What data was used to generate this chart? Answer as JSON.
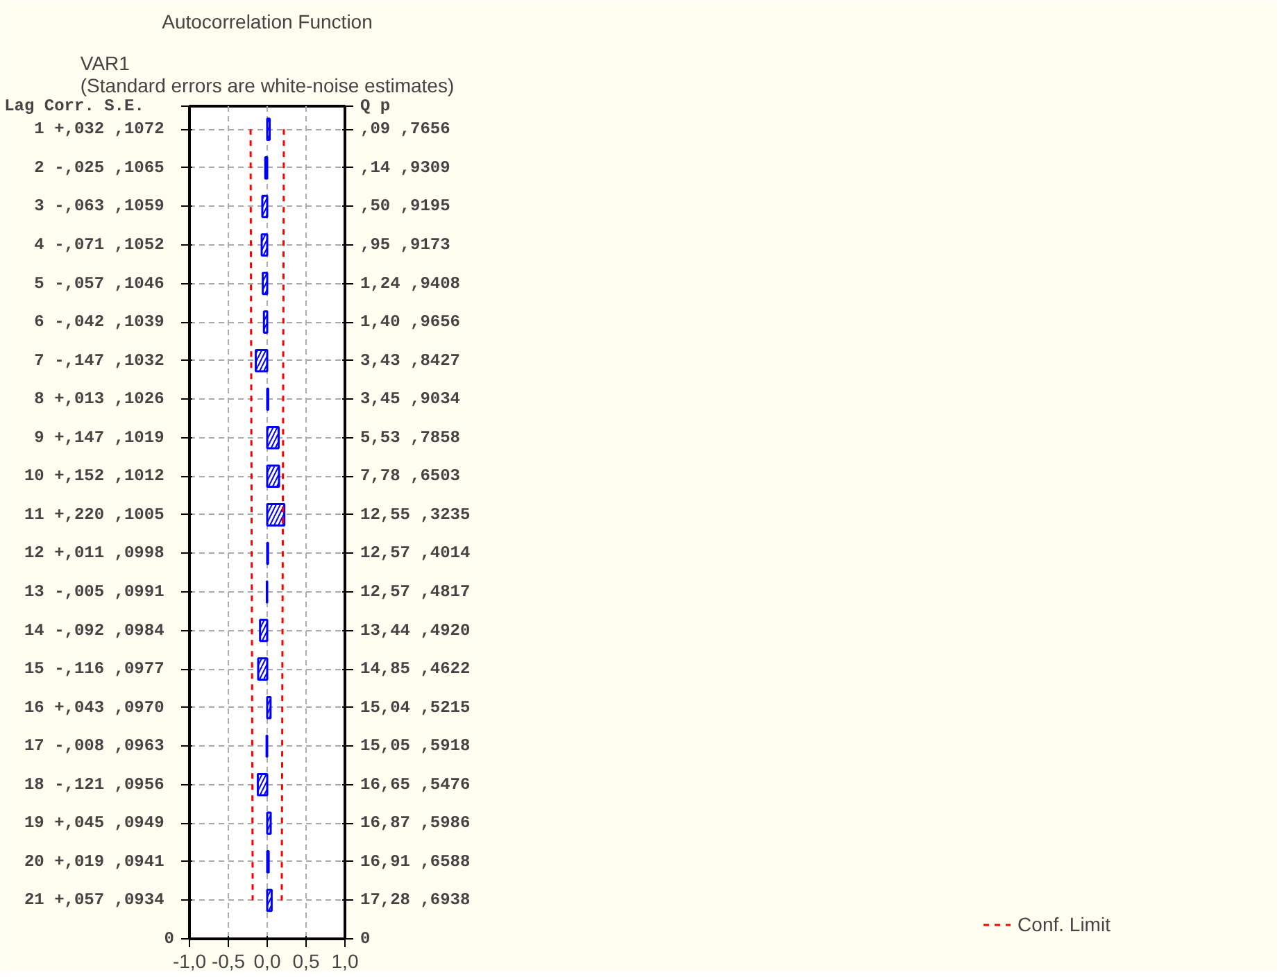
{
  "chart_data": {
    "type": "bar",
    "orientation": "horizontal",
    "title": "Autocorrelation Function",
    "subtitle": "VAR1\n(Standard errors are white-noise estimates)",
    "categories": [
      "1  +,032 ,1072",
      "2  -,025 ,1065",
      "3  -,063 ,1059",
      "4  -,071 ,1052",
      "5  -,057 ,1046",
      "6  -,042 ,1039",
      "7  -,147 ,1032",
      "8  +,013 ,1026",
      "9  +,147 ,1019",
      "10  +,152 ,1012",
      "11  +,220 ,1005",
      "12  +,011 ,0998",
      "13  -,005 ,0991",
      "14  -,092 ,0984",
      "15  -,116 ,0977",
      "16  +,043 ,0970",
      "17  -,008 ,0963",
      "18  -,121 ,0956",
      "19  +,045 ,0949",
      "20  +,019 ,0941",
      "21  +,057 ,0934",
      "0"
    ],
    "series": [
      {
        "color": "#0000ff",
        "values": [
          0.032,
          -0.025,
          -0.063,
          -0.071,
          -0.057,
          -0.042,
          -0.147,
          0.013,
          0.147,
          0.152,
          0.22,
          0.011,
          -0.005,
          -0.092,
          -0.116,
          0.043,
          -0.008,
          -0.121,
          0.045,
          0.019,
          0.057,
          null
        ]
      },
      {
        "type": "line",
        "name": "Conf. Limit",
        "color": "#ff0000",
        "line_style": "dashed",
        "values": [
          0.214,
          0.213,
          0.212,
          0.21,
          0.209,
          0.208,
          0.206,
          0.205,
          0.204,
          0.202,
          0.201,
          0.2,
          0.198,
          0.197,
          0.195,
          0.194,
          0.193,
          0.191,
          0.19,
          0.188,
          0.187,
          null
        ]
      },
      {
        "type": "line",
        "color": "#ff0000",
        "line_style": "dashed",
        "values": [
          -0.214,
          -0.213,
          -0.212,
          -0.21,
          -0.209,
          -0.208,
          -0.206,
          -0.205,
          -0.204,
          -0.202,
          -0.201,
          -0.2,
          -0.198,
          -0.197,
          -0.195,
          -0.194,
          -0.193,
          -0.191,
          -0.19,
          -0.188,
          -0.187,
          null
        ]
      }
    ],
    "xlim": [
      -1,
      1
    ],
    "xticks": [
      {
        "value": -1,
        "label": "-1,0"
      },
      {
        "value": -0.5,
        "label": "-0,5"
      },
      {
        "value": 0,
        "label": "0,0"
      },
      {
        "value": 0.5,
        "label": "0,5"
      },
      {
        "value": 1,
        "label": "1,0"
      }
    ],
    "grid": true,
    "legend": "bottom right",
    "annotations": [
      "Lag    Corr. S.E.",
      "Q    p",
      ",09  ,7656",
      ",14  ,9309",
      ",50  ,9195",
      ",95  ,9173",
      "1,24  ,9408",
      "1,40  ,9656",
      "3,43  ,8427",
      "3,45  ,9034",
      "5,53  ,7858",
      "7,78  ,6503",
      "12,55  ,3235",
      "12,57  ,4014",
      "12,57  ,4817",
      "13,44  ,4920",
      "14,85  ,4622",
      "15,04  ,5215",
      "15,05  ,5918",
      "16,65  ,5476",
      "16,87  ,5986",
      "16,91  ,6588",
      "17,28  ,6938",
      "0"
    ]
  }
}
